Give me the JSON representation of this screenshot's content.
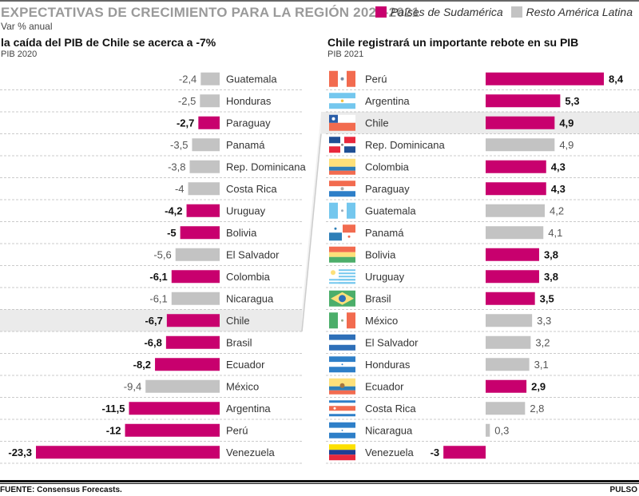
{
  "header": {
    "title": "EXPECTATIVAS DE CRECIMIENTO PARA LA REGIÓN 2020-2021",
    "subtitle": "Var % anual",
    "legend": [
      {
        "label": "Países de Sudamérica",
        "color": "#c8006e"
      },
      {
        "label": "Resto América Latina",
        "color": "#c3c3c3"
      }
    ]
  },
  "colors": {
    "south_america": "#c8006e",
    "rest_latam": "#c3c3c3",
    "highlight_row": "#ebebeb"
  },
  "footer": {
    "source": "FUENTE: Consensus Forecasts.",
    "brand": "PULSO"
  },
  "chart_data": [
    {
      "type": "bar",
      "orientation": "horizontal",
      "title": "la caída del PIB de Chile se acerca a -7%",
      "subtitle": "PIB 2020",
      "highlight": "Chile",
      "categories": [
        "Guatemala",
        "Honduras",
        "Paraguay",
        "Panamá",
        "Rep. Dominicana",
        "Costa Rica",
        "Uruguay",
        "Bolivia",
        "El Salvador",
        "Colombia",
        "Nicaragua",
        "Chile",
        "Brasil",
        "Ecuador",
        "México",
        "Argentina",
        "Perú",
        "Venezuela"
      ],
      "values": [
        -2.4,
        -2.5,
        -2.7,
        -3.5,
        -3.8,
        -4,
        -4.2,
        -5,
        -5.6,
        -6.1,
        -6.1,
        -6.7,
        -6.8,
        -8.2,
        -9.4,
        -11.5,
        -12,
        -23.3
      ],
      "labels": [
        "-2,4",
        "-2,5",
        "-2,7",
        "-3,5",
        "-3,8",
        "-4",
        "-4,2",
        "-5",
        "-5,6",
        "-6,1",
        "-6,1",
        "-6,7",
        "-6,8",
        "-8,2",
        "-9,4",
        "-11,5",
        "-12",
        "-23,3"
      ],
      "south_america": [
        false,
        false,
        true,
        false,
        false,
        false,
        true,
        true,
        false,
        true,
        false,
        true,
        true,
        true,
        false,
        true,
        true,
        true
      ]
    },
    {
      "type": "bar",
      "orientation": "horizontal",
      "title": "Chile registrará un importante rebote en su PIB",
      "subtitle": "PIB 2021",
      "highlight": "Chile",
      "categories": [
        "Perú",
        "Argentina",
        "Chile",
        "Rep. Dominicana",
        "Colombia",
        "Paraguay",
        "Guatemala",
        "Panamá",
        "Bolivia",
        "Uruguay",
        "Brasil",
        "México",
        "El Salvador",
        "Honduras",
        "Ecuador",
        "Costa Rica",
        "Nicaragua",
        "Venezuela"
      ],
      "values": [
        8.4,
        5.3,
        4.9,
        4.9,
        4.3,
        4.3,
        4.2,
        4.1,
        3.8,
        3.8,
        3.5,
        3.3,
        3.2,
        3.1,
        2.9,
        2.8,
        0.3,
        -3
      ],
      "labels": [
        "8,4",
        "5,3",
        "4,9",
        "4,9",
        "4,3",
        "4,3",
        "4,2",
        "4,1",
        "3,8",
        "3,8",
        "3,5",
        "3,3",
        "3,2",
        "3,1",
        "2,9",
        "2,8",
        "0,3",
        "-3"
      ],
      "south_america": [
        true,
        true,
        true,
        false,
        true,
        true,
        false,
        false,
        true,
        true,
        true,
        false,
        false,
        false,
        true,
        false,
        false,
        true
      ],
      "flags": [
        "peru-flag",
        "argentina-flag",
        "chile-flag",
        "dominican-republic-flag",
        "colombia-flag",
        "paraguay-flag",
        "guatemala-flag",
        "panama-flag",
        "bolivia-flag",
        "uruguay-flag",
        "brazil-flag",
        "mexico-flag",
        "el-salvador-flag",
        "honduras-flag",
        "ecuador-flag",
        "costa-rica-flag",
        "nicaragua-flag",
        "venezuela-flag"
      ]
    }
  ]
}
